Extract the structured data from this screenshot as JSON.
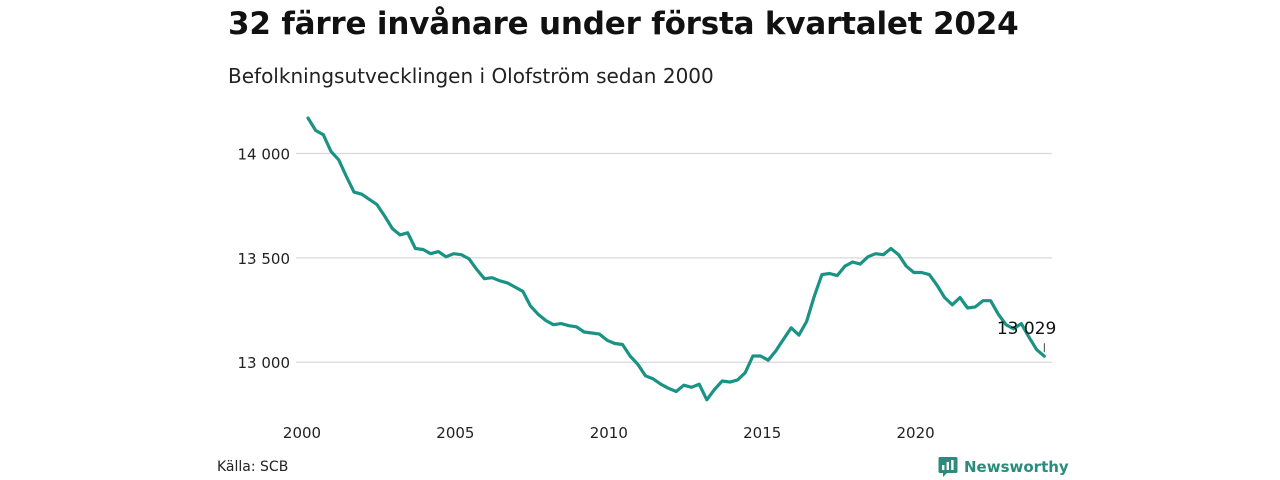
{
  "header": {
    "title": "32 färre invånare under första kvartalet 2024",
    "subtitle": "Befolkningsutvecklingen i Olofström sedan 2000"
  },
  "footer": {
    "source": "Källa: SCB",
    "brand": "Newsworthy"
  },
  "colors": {
    "line": "#1a9385",
    "grid": "#d9d9d9",
    "brand": "#2a8c7d"
  },
  "chart_data": {
    "type": "line",
    "title": "32 färre invånare under första kvartalet 2024",
    "subtitle": "Befolkningsutvecklingen i Olofström sedan 2000",
    "xlabel": "",
    "ylabel": "",
    "x_ticks": [
      2000,
      2005,
      2010,
      2015,
      2020
    ],
    "x_tick_labels": [
      "2000",
      "2005",
      "2010",
      "2015",
      "2020"
    ],
    "y_ticks": [
      13000,
      13500,
      14000
    ],
    "y_tick_labels": [
      "13 000",
      "13 500",
      "14 000"
    ],
    "xlim": [
      2000,
      2024.25
    ],
    "ylim": [
      12800,
      14170
    ],
    "grid": true,
    "annotation": {
      "x": 2024.0,
      "value": 13029,
      "label": "13 029"
    },
    "series": [
      {
        "x": [
          2000.0,
          2000.25,
          2000.5,
          2000.75,
          2001.0,
          2001.25,
          2001.5,
          2001.75,
          2002.0,
          2002.25,
          2002.5,
          2002.75,
          2003.0,
          2003.25,
          2003.5,
          2003.75,
          2004.0,
          2004.25,
          2004.5,
          2004.75,
          2005.0,
          2005.25,
          2005.5,
          2005.75,
          2006.0,
          2006.25,
          2006.5,
          2006.75,
          2007.0,
          2007.25,
          2007.5,
          2007.75,
          2008.0,
          2008.25,
          2008.5,
          2008.75,
          2009.0,
          2009.25,
          2009.5,
          2009.75,
          2010.0,
          2010.25,
          2010.5,
          2010.75,
          2011.0,
          2011.25,
          2011.5,
          2011.75,
          2012.0,
          2012.25,
          2012.5,
          2012.75,
          2013.0,
          2013.25,
          2013.5,
          2013.75,
          2014.0,
          2014.25,
          2014.5,
          2014.75,
          2015.0,
          2015.25,
          2015.5,
          2015.75,
          2016.0,
          2016.25,
          2016.5,
          2016.75,
          2017.0,
          2017.25,
          2017.5,
          2017.75,
          2018.0,
          2018.25,
          2018.5,
          2018.75,
          2019.0,
          2019.25,
          2019.5,
          2019.75,
          2020.0,
          2020.25,
          2020.5,
          2020.75,
          2021.0,
          2021.25,
          2021.5,
          2021.75,
          2022.0,
          2022.25,
          2022.5,
          2022.75,
          2023.0,
          2023.25,
          2023.5,
          2023.75,
          2024.0
        ],
        "values": [
          14170,
          14110,
          14090,
          14010,
          13970,
          13890,
          13815,
          13805,
          13780,
          13755,
          13700,
          13640,
          13610,
          13620,
          13545,
          13540,
          13520,
          13530,
          13505,
          13520,
          13515,
          13495,
          13445,
          13400,
          13405,
          13390,
          13380,
          13360,
          13340,
          13270,
          13230,
          13200,
          13180,
          13185,
          13175,
          13170,
          13145,
          13140,
          13135,
          13105,
          13090,
          13085,
          13030,
          12990,
          12935,
          12920,
          12895,
          12875,
          12860,
          12890,
          12880,
          12895,
          12820,
          12870,
          12910,
          12905,
          12915,
          12950,
          13030,
          13030,
          13010,
          13055,
          13110,
          13165,
          13130,
          13195,
          13315,
          13420,
          13425,
          13415,
          13460,
          13480,
          13470,
          13505,
          13520,
          13515,
          13545,
          13515,
          13460,
          13430,
          13430,
          13420,
          13370,
          13310,
          13275,
          13310,
          13260,
          13265,
          13295,
          13295,
          13230,
          13180,
          13160,
          13185,
          13120,
          13060,
          13029
        ]
      }
    ]
  }
}
